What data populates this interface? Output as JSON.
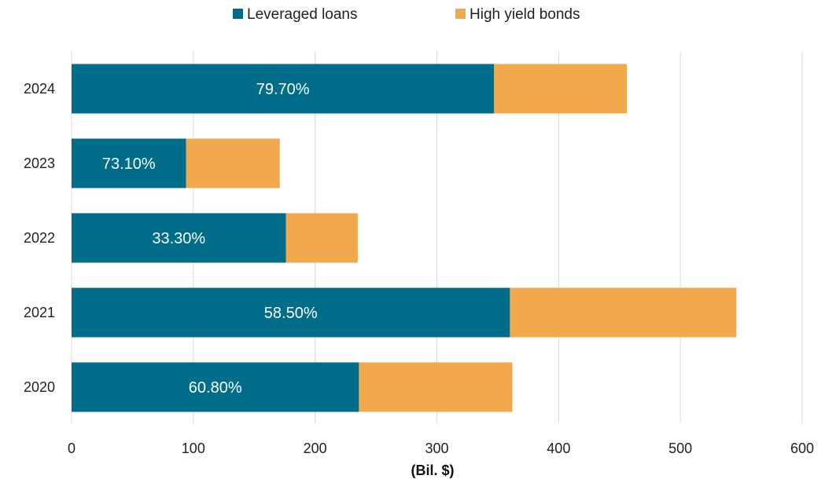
{
  "chart_data": {
    "type": "bar",
    "orientation": "horizontal",
    "stacked": true,
    "categories": [
      "2024",
      "2023",
      "2022",
      "2021",
      "2020"
    ],
    "series": [
      {
        "name": "Leveraged loans",
        "color": "#006d8a",
        "values": [
          347,
          94,
          176,
          360,
          236
        ],
        "labels": [
          "79.70%",
          "73.10%",
          "33.30%",
          "58.50%",
          "60.80%"
        ]
      },
      {
        "name": "High yield bonds",
        "color": "#f2a84c",
        "values": [
          109,
          77,
          59,
          186,
          126
        ]
      }
    ],
    "xlim": [
      0,
      600
    ],
    "xticks": [
      0,
      100,
      200,
      300,
      400,
      500,
      600
    ],
    "xlabel": "(Bil. $)",
    "grid": "vertical",
    "legend_position": "top-center",
    "gridline_color": "#d9d9d9"
  }
}
